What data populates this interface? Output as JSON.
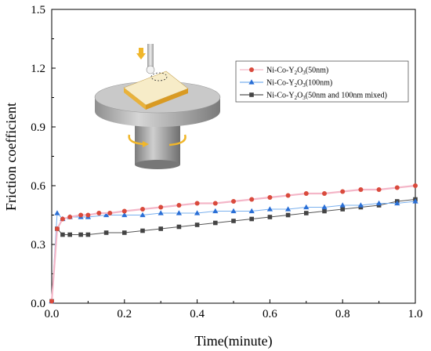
{
  "chart_data": {
    "type": "line",
    "xlabel": "Time(minute)",
    "ylabel": "Friction coefficient",
    "xlim": [
      0.0,
      1.0
    ],
    "ylim": [
      0.0,
      1.5
    ],
    "x_ticks": [
      "0.0",
      "0.2",
      "0.4",
      "0.6",
      "0.8",
      "1.0"
    ],
    "y_ticks": [
      "0.0",
      "0.3",
      "0.6",
      "0.9",
      "1.2",
      "1.5"
    ],
    "grid": false,
    "legend_position": "top-right",
    "series": [
      {
        "name_parts": [
          "Ni-Co-Y",
          "2",
          "O",
          "3",
          "(50nm)"
        ],
        "marker": "circle",
        "color": "#d94a3c",
        "line_color": "#f4b6c8",
        "x": [
          0.0,
          0.015,
          0.03,
          0.05,
          0.08,
          0.1,
          0.13,
          0.16,
          0.2,
          0.25,
          0.3,
          0.35,
          0.4,
          0.45,
          0.5,
          0.55,
          0.6,
          0.65,
          0.7,
          0.75,
          0.8,
          0.85,
          0.9,
          0.95,
          1.0
        ],
        "y": [
          0.01,
          0.38,
          0.43,
          0.44,
          0.45,
          0.45,
          0.46,
          0.46,
          0.47,
          0.48,
          0.49,
          0.5,
          0.51,
          0.51,
          0.52,
          0.53,
          0.54,
          0.55,
          0.56,
          0.56,
          0.57,
          0.58,
          0.58,
          0.59,
          0.6
        ]
      },
      {
        "name_parts": [
          "Ni-Co-Y",
          "2",
          "O",
          "3",
          "(100nm)"
        ],
        "marker": "triangle",
        "color": "#2a6fd6",
        "line_color": "#7ab0ee",
        "x": [
          0.0,
          0.015,
          0.03,
          0.05,
          0.08,
          0.1,
          0.15,
          0.2,
          0.25,
          0.3,
          0.35,
          0.4,
          0.45,
          0.5,
          0.55,
          0.6,
          0.65,
          0.7,
          0.75,
          0.8,
          0.85,
          0.9,
          0.95,
          1.0
        ],
        "y": [
          0.01,
          0.46,
          0.43,
          0.44,
          0.44,
          0.44,
          0.45,
          0.45,
          0.45,
          0.46,
          0.46,
          0.46,
          0.47,
          0.47,
          0.47,
          0.48,
          0.48,
          0.49,
          0.49,
          0.5,
          0.5,
          0.51,
          0.51,
          0.52
        ]
      },
      {
        "name_parts": [
          "Ni-Co-Y",
          "2",
          "O",
          "3",
          "(50nm and 100nm  mixed)"
        ],
        "marker": "square",
        "color": "#444444",
        "line_color": "#555555",
        "x": [
          0.0,
          0.015,
          0.03,
          0.05,
          0.08,
          0.1,
          0.15,
          0.2,
          0.25,
          0.3,
          0.35,
          0.4,
          0.45,
          0.5,
          0.55,
          0.6,
          0.65,
          0.7,
          0.75,
          0.8,
          0.85,
          0.9,
          0.95,
          1.0
        ],
        "y": [
          0.01,
          0.38,
          0.35,
          0.35,
          0.35,
          0.35,
          0.36,
          0.36,
          0.37,
          0.38,
          0.39,
          0.4,
          0.41,
          0.42,
          0.43,
          0.44,
          0.45,
          0.46,
          0.47,
          0.48,
          0.49,
          0.5,
          0.52,
          0.53
        ]
      }
    ]
  },
  "inset": {
    "icon": "tribometer-schematic",
    "colors": {
      "disk": "#bdbdbd",
      "sample_top": "#f7ecc8",
      "sample_band": "#e9b23a",
      "arrow": "#f0b62a"
    }
  }
}
